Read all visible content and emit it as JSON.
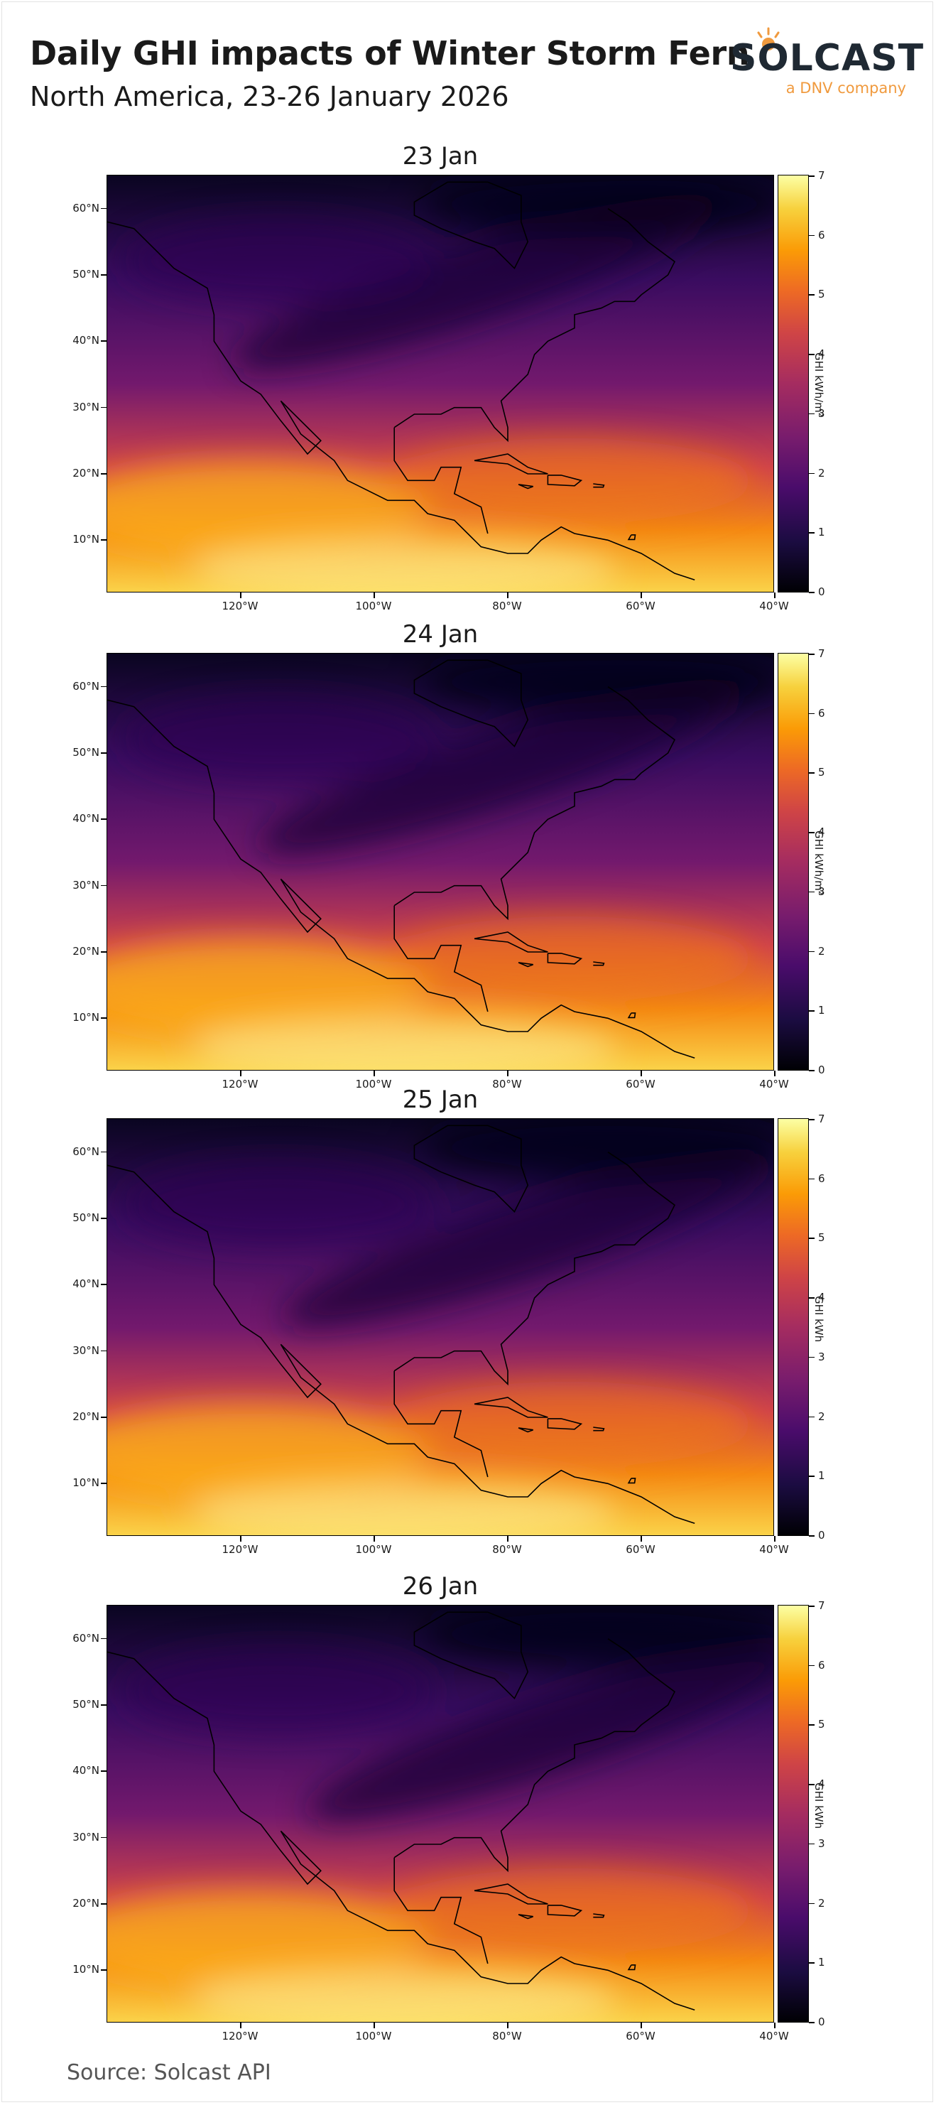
{
  "header": {
    "title": "Daily GHI impacts of Winter Storm Fern",
    "subtitle": "North America, 23-26 January 2026"
  },
  "logo": {
    "wordmark": "SOLCAST",
    "tagline": "a DNV company",
    "icon": "sun-icon",
    "colors": {
      "text": "#1f2933",
      "accent": "#f09a3e"
    }
  },
  "axes": {
    "lat_labels": [
      "60°N",
      "50°N",
      "40°N",
      "30°N",
      "20°N",
      "10°N"
    ],
    "lon_labels": [
      "120°W",
      "100°W",
      "80°W",
      "60°W",
      "40°W"
    ],
    "extent": {
      "lon": [
        -140,
        -40
      ],
      "lat": [
        2,
        65
      ]
    }
  },
  "colorbar": {
    "colormap": "inferno",
    "ticks": [
      "0",
      "1",
      "2",
      "3",
      "4",
      "5",
      "6",
      "7"
    ],
    "range": [
      0,
      7
    ]
  },
  "panels": [
    {
      "title": "23 Jan",
      "cbar_label": "GHI kWh/m²"
    },
    {
      "title": "24 Jan",
      "cbar_label": "GHI kWh/m²"
    },
    {
      "title": "25 Jan",
      "cbar_label": "GHI kWh"
    },
    {
      "title": "26 Jan",
      "cbar_label": "GHI kWh"
    }
  ],
  "footer": {
    "source": "Source: Solcast API"
  }
}
